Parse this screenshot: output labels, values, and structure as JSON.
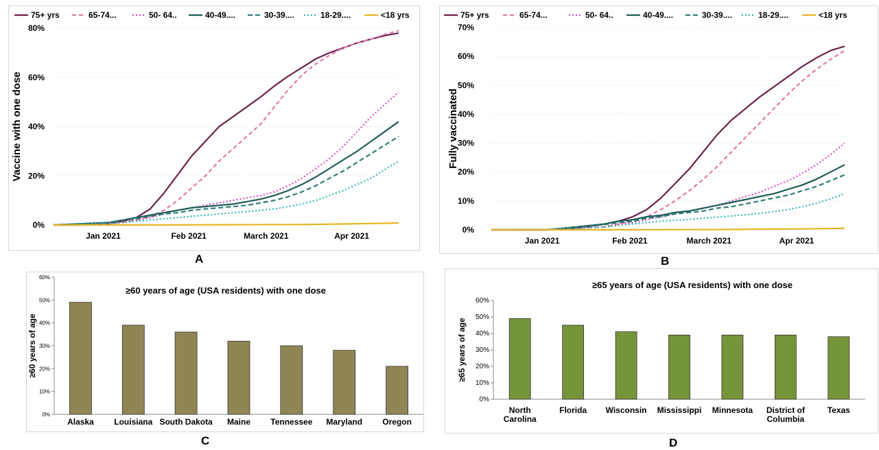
{
  "panels": {
    "a_letter": "A",
    "b_letter": "B",
    "c_letter": "C",
    "d_letter": "D"
  },
  "colors": {
    "s75": "#6b2048",
    "s65": "#e07aa9",
    "s50": "#d44fc0",
    "s40": "#1d5c57",
    "s30": "#2e7d76",
    "s18": "#31b6b0",
    "s00": "#e6b422",
    "bar_c": "#8f8656",
    "bar_d": "#76943a"
  },
  "chart_data": [
    {
      "type": "line",
      "panel": "A",
      "title": "",
      "ylabel": "Vaccine with one dose",
      "xlabel": "",
      "x_ticks": [
        "Jan 2021",
        "Feb 2021",
        "March 2021",
        "Apr 2021"
      ],
      "x_tick_days": [
        18,
        49,
        77,
        108
      ],
      "y_ticks": [
        "0%",
        "20%",
        "40%",
        "60%",
        "80%"
      ],
      "y_tick_values": [
        0,
        20,
        40,
        60,
        80
      ],
      "ylim": [
        0,
        80
      ],
      "xlim": [
        0,
        125
      ],
      "grid": true,
      "legend_position": "top",
      "series": [
        {
          "name": "75+ yrs",
          "key": "s75",
          "dash": "solid",
          "x": [
            0,
            10,
            20,
            25,
            30,
            35,
            40,
            45,
            50,
            55,
            60,
            65,
            70,
            75,
            80,
            85,
            90,
            95,
            100,
            105,
            110,
            115,
            120,
            125
          ],
          "y": [
            0,
            0,
            0.5,
            1.5,
            3,
            6.5,
            13,
            20.5,
            28,
            34,
            40,
            44,
            48,
            52,
            56.5,
            60.5,
            64,
            67.5,
            70,
            72,
            74,
            75.5,
            77,
            78
          ]
        },
        {
          "name": "65-74...",
          "key": "s65",
          "dash": "6,4",
          "x": [
            0,
            10,
            20,
            25,
            30,
            35,
            40,
            45,
            50,
            55,
            60,
            65,
            70,
            75,
            80,
            85,
            90,
            95,
            100,
            105,
            110,
            115,
            120,
            125
          ],
          "y": [
            0,
            0,
            0.5,
            1,
            2,
            3.5,
            6,
            10,
            15,
            20,
            26,
            31,
            36,
            41,
            48,
            55,
            61,
            65.5,
            69,
            72,
            74,
            75.5,
            77.5,
            79
          ]
        },
        {
          "name": "50- 64..",
          "key": "s50",
          "dash": "2,3",
          "x": [
            0,
            10,
            20,
            25,
            30,
            35,
            40,
            45,
            50,
            55,
            60,
            65,
            70,
            75,
            80,
            85,
            90,
            95,
            100,
            105,
            110,
            115,
            120,
            125
          ],
          "y": [
            0,
            0,
            0.5,
            1,
            2,
            3,
            4.5,
            6,
            7,
            8,
            9,
            10,
            11,
            12,
            13.5,
            16,
            19,
            23,
            27,
            32,
            38,
            44,
            49,
            54
          ]
        },
        {
          "name": "40-49....",
          "key": "s40",
          "dash": "solid",
          "x": [
            0,
            10,
            20,
            25,
            30,
            35,
            40,
            45,
            50,
            55,
            60,
            65,
            70,
            75,
            80,
            85,
            90,
            95,
            100,
            105,
            110,
            115,
            120,
            125
          ],
          "y": [
            0,
            0.5,
            1,
            2,
            3,
            4,
            5,
            6,
            7,
            7.5,
            8,
            8.5,
            9.5,
            10.5,
            12,
            14,
            16.5,
            19.5,
            23,
            26.5,
            30,
            34,
            38,
            42
          ]
        },
        {
          "name": "30-39....",
          "key": "s30",
          "dash": "7,4",
          "x": [
            0,
            10,
            20,
            25,
            30,
            35,
            40,
            45,
            50,
            55,
            60,
            65,
            70,
            75,
            80,
            85,
            90,
            95,
            100,
            105,
            110,
            115,
            120,
            125
          ],
          "y": [
            0,
            0.5,
            1,
            2,
            2.5,
            3.5,
            4.5,
            5,
            6,
            6.5,
            7,
            7.5,
            8,
            9,
            10,
            11.5,
            13.5,
            16,
            19,
            22,
            25.5,
            29,
            32.5,
            36
          ]
        },
        {
          "name": "18-29....",
          "key": "s18",
          "dash": "2,3",
          "x": [
            0,
            10,
            20,
            25,
            30,
            35,
            40,
            45,
            50,
            55,
            60,
            65,
            70,
            75,
            80,
            85,
            90,
            95,
            100,
            105,
            110,
            115,
            120,
            125
          ],
          "y": [
            0,
            0.3,
            0.6,
            1,
            1.5,
            2,
            2.5,
            3,
            3.5,
            4,
            4.5,
            5,
            5.5,
            6,
            6.5,
            7.5,
            8.5,
            10,
            12,
            14,
            16.5,
            19,
            22.5,
            26
          ]
        },
        {
          "name": "<18 yrs",
          "key": "s00",
          "dash": "solid",
          "x": [
            0,
            30,
            60,
            90,
            110,
            125
          ],
          "y": [
            0,
            0,
            0.1,
            0.2,
            0.5,
            0.8
          ]
        }
      ]
    },
    {
      "type": "line",
      "panel": "B",
      "title": "",
      "ylabel": "Fully vaccinated",
      "xlabel": "",
      "x_ticks": [
        "Jan 2021",
        "Feb 2021",
        "March 2021",
        "Apr 2021"
      ],
      "x_tick_days": [
        18,
        49,
        77,
        108
      ],
      "y_ticks": [
        "0%",
        "10%",
        "20%",
        "30%",
        "40%",
        "50%",
        "60%",
        "70%"
      ],
      "y_tick_values": [
        0,
        10,
        20,
        30,
        40,
        50,
        60,
        70
      ],
      "ylim": [
        0,
        70
      ],
      "xlim": [
        0,
        125
      ],
      "grid": true,
      "legend_position": "top",
      "series": [
        {
          "name": "75+ yrs",
          "key": "s75",
          "dash": "solid",
          "x": [
            0,
            20,
            30,
            40,
            45,
            50,
            55,
            60,
            65,
            70,
            75,
            80,
            85,
            90,
            95,
            100,
            105,
            110,
            115,
            120,
            125
          ],
          "y": [
            0,
            0,
            0.5,
            2,
            3,
            4.5,
            7,
            11,
            16,
            21,
            27,
            33,
            38,
            42,
            46,
            49.5,
            53,
            56.5,
            59.5,
            62,
            63.5
          ]
        },
        {
          "name": "65-74...",
          "key": "s65",
          "dash": "6,4",
          "x": [
            0,
            20,
            30,
            40,
            45,
            50,
            55,
            60,
            65,
            70,
            75,
            80,
            85,
            90,
            95,
            100,
            105,
            110,
            115,
            120,
            125
          ],
          "y": [
            0,
            0,
            0.5,
            1,
            2,
            3,
            4.5,
            7,
            10,
            13.5,
            17.5,
            22,
            27,
            32,
            37,
            42,
            47,
            51.5,
            55.5,
            59,
            62
          ]
        },
        {
          "name": "50- 64..",
          "key": "s50",
          "dash": "2,3",
          "x": [
            0,
            20,
            30,
            40,
            45,
            50,
            55,
            60,
            65,
            70,
            75,
            80,
            85,
            90,
            95,
            100,
            105,
            110,
            115,
            120,
            125
          ],
          "y": [
            0,
            0,
            0.5,
            1,
            2,
            2.5,
            3.5,
            4.5,
            5.5,
            6.5,
            7.5,
            8.5,
            10,
            11.5,
            13,
            15,
            17,
            19.5,
            22.5,
            26,
            30
          ]
        },
        {
          "name": "40-49....",
          "key": "s40",
          "dash": "solid",
          "x": [
            0,
            20,
            30,
            40,
            45,
            50,
            55,
            60,
            65,
            70,
            75,
            80,
            85,
            90,
            95,
            100,
            105,
            110,
            115,
            120,
            125
          ],
          "y": [
            0,
            0,
            1,
            2,
            3,
            3.5,
            4.5,
            5,
            6,
            6.5,
            7.5,
            8.5,
            9.5,
            10.5,
            11.5,
            12.5,
            14,
            15.5,
            17.5,
            20,
            22.5
          ]
        },
        {
          "name": "30-39....",
          "key": "s30",
          "dash": "7,4",
          "x": [
            0,
            20,
            30,
            40,
            45,
            50,
            55,
            60,
            65,
            70,
            75,
            80,
            85,
            90,
            95,
            100,
            105,
            110,
            115,
            120,
            125
          ],
          "y": [
            0,
            0,
            0.8,
            1.8,
            2.5,
            3,
            4,
            4.5,
            5.5,
            6,
            6.5,
            7.5,
            8,
            9,
            10,
            11,
            12,
            13.5,
            15,
            17,
            19
          ]
        },
        {
          "name": "18-29....",
          "key": "s18",
          "dash": "2,3",
          "x": [
            0,
            20,
            30,
            40,
            45,
            50,
            55,
            60,
            65,
            70,
            75,
            80,
            85,
            90,
            95,
            100,
            105,
            110,
            115,
            120,
            125
          ],
          "y": [
            0,
            0,
            0.5,
            1,
            1.5,
            2,
            2.5,
            3,
            3.3,
            3.6,
            4,
            4.4,
            4.8,
            5.2,
            5.7,
            6.3,
            7,
            8,
            9.2,
            10.7,
            12.5
          ]
        },
        {
          "name": "<18 yrs",
          "key": "s00",
          "dash": "solid",
          "x": [
            0,
            40,
            80,
            110,
            125
          ],
          "y": [
            0,
            0,
            0.1,
            0.3,
            0.5
          ]
        }
      ]
    },
    {
      "type": "bar",
      "panel": "C",
      "title": "≥60 years of age (USA residents) with one dose",
      "ylabel": "≥60 years of age",
      "xlabel": "",
      "categories": [
        "Alaska",
        "Louisiana",
        "South Dakota",
        "Maine",
        "Tennessee",
        "Maryland",
        "Oregon"
      ],
      "values": [
        49,
        39,
        36,
        32,
        30,
        28,
        21
      ],
      "y_ticks": [
        "0%",
        "10%",
        "20%",
        "30%",
        "40%",
        "50%",
        "60%"
      ],
      "ylim": [
        0,
        60
      ],
      "grid": false
    },
    {
      "type": "bar",
      "panel": "D",
      "title": "≥65 years of age (USA residents) with one dose",
      "ylabel": "≥65 years of age",
      "xlabel": "",
      "categories": [
        [
          "North",
          "Carolina"
        ],
        [
          "Florida"
        ],
        [
          "Wisconsin"
        ],
        [
          "Mississippi"
        ],
        [
          "Minnesota"
        ],
        [
          "District of",
          "Columbia"
        ],
        [
          "Texas"
        ]
      ],
      "values": [
        49,
        45,
        41,
        39,
        39,
        39,
        38
      ],
      "y_ticks": [
        "0%",
        "10%",
        "20%",
        "30%",
        "40%",
        "50%",
        "60%"
      ],
      "ylim": [
        0,
        60
      ],
      "grid": false
    }
  ]
}
